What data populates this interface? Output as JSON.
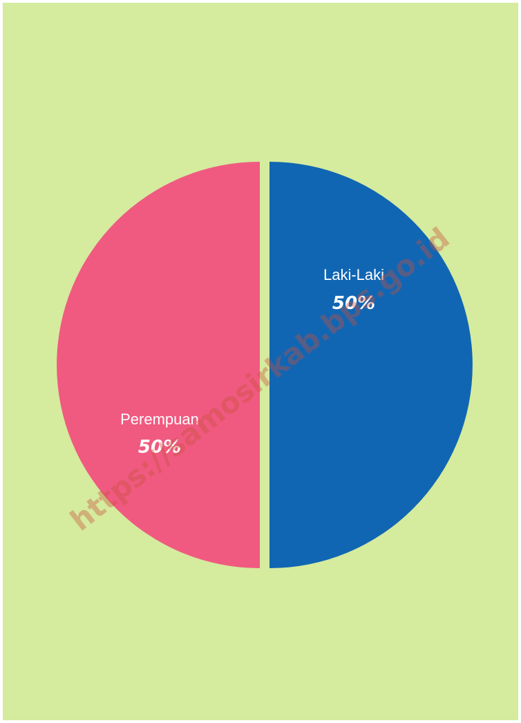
{
  "chart_data": {
    "type": "pie",
    "slices": [
      {
        "label": "Laki-Laki",
        "value": 50,
        "value_label": "50%",
        "color": "#1166b3"
      },
      {
        "label": "Perempuan",
        "value": 50,
        "value_label": "50%",
        "color": "#f05a80"
      }
    ],
    "title": "",
    "legend": "none"
  },
  "watermark": "https://samosirkab.bps.go.id",
  "background_color": "#d5eb9e"
}
